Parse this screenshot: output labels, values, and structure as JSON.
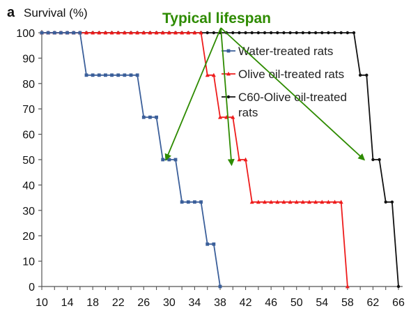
{
  "chart_data": {
    "type": "line",
    "panel_letter": "a",
    "ylabel": "Survival (%)",
    "xlabel": "",
    "xlim": [
      10,
      66
    ],
    "ylim": [
      0,
      100
    ],
    "x_ticks": [
      10,
      14,
      18,
      22,
      26,
      30,
      34,
      38,
      42,
      46,
      50,
      54,
      58,
      62,
      66
    ],
    "y_ticks": [
      0,
      10,
      20,
      30,
      40,
      50,
      60,
      70,
      80,
      90,
      100
    ],
    "grid": false,
    "legend_position": "upper-right",
    "annotation": {
      "text": "Typical lifespan",
      "color": "#2e8b00",
      "arrow_targets": [
        [
          29.5,
          50
        ],
        [
          39.8,
          48
        ],
        [
          60.6,
          50
        ]
      ]
    },
    "series": [
      {
        "name": "Water-treated rats",
        "color": "#3b5f9a",
        "marker": "square",
        "points": [
          [
            10,
            100
          ],
          [
            11,
            100
          ],
          [
            12,
            100
          ],
          [
            13,
            100
          ],
          [
            14,
            100
          ],
          [
            15,
            100
          ],
          [
            16,
            100
          ],
          [
            17,
            83.3
          ],
          [
            18,
            83.3
          ],
          [
            19,
            83.3
          ],
          [
            20,
            83.3
          ],
          [
            21,
            83.3
          ],
          [
            22,
            83.3
          ],
          [
            23,
            83.3
          ],
          [
            24,
            83.3
          ],
          [
            25,
            83.3
          ],
          [
            26,
            66.7
          ],
          [
            27,
            66.7
          ],
          [
            28,
            66.7
          ],
          [
            29,
            50
          ],
          [
            30,
            50
          ],
          [
            31,
            50
          ],
          [
            32,
            33.3
          ],
          [
            33,
            33.3
          ],
          [
            34,
            33.3
          ],
          [
            35,
            33.3
          ],
          [
            36,
            16.7
          ],
          [
            37,
            16.7
          ],
          [
            38,
            0
          ]
        ]
      },
      {
        "name": "Olive oil-treated rats",
        "color": "#ee1c1c",
        "marker": "triangle",
        "points": [
          [
            10,
            100
          ],
          [
            11,
            100
          ],
          [
            12,
            100
          ],
          [
            13,
            100
          ],
          [
            14,
            100
          ],
          [
            15,
            100
          ],
          [
            16,
            100
          ],
          [
            17,
            100
          ],
          [
            18,
            100
          ],
          [
            19,
            100
          ],
          [
            20,
            100
          ],
          [
            21,
            100
          ],
          [
            22,
            100
          ],
          [
            23,
            100
          ],
          [
            24,
            100
          ],
          [
            25,
            100
          ],
          [
            26,
            100
          ],
          [
            27,
            100
          ],
          [
            28,
            100
          ],
          [
            29,
            100
          ],
          [
            30,
            100
          ],
          [
            31,
            100
          ],
          [
            32,
            100
          ],
          [
            33,
            100
          ],
          [
            34,
            100
          ],
          [
            35,
            100
          ],
          [
            36,
            83.3
          ],
          [
            37,
            83.3
          ],
          [
            38,
            66.7
          ],
          [
            39,
            66.7
          ],
          [
            40,
            66.7
          ],
          [
            41,
            50
          ],
          [
            42,
            50
          ],
          [
            43,
            33.3
          ],
          [
            44,
            33.3
          ],
          [
            45,
            33.3
          ],
          [
            46,
            33.3
          ],
          [
            47,
            33.3
          ],
          [
            48,
            33.3
          ],
          [
            49,
            33.3
          ],
          [
            50,
            33.3
          ],
          [
            51,
            33.3
          ],
          [
            52,
            33.3
          ],
          [
            53,
            33.3
          ],
          [
            54,
            33.3
          ],
          [
            55,
            33.3
          ],
          [
            56,
            33.3
          ],
          [
            57,
            33.3
          ],
          [
            58,
            0
          ]
        ]
      },
      {
        "name": "C60-Olive oil-treated rats",
        "color": "#111111",
        "marker": "circle",
        "points": [
          [
            10,
            100
          ],
          [
            11,
            100
          ],
          [
            12,
            100
          ],
          [
            13,
            100
          ],
          [
            14,
            100
          ],
          [
            15,
            100
          ],
          [
            16,
            100
          ],
          [
            17,
            100
          ],
          [
            18,
            100
          ],
          [
            19,
            100
          ],
          [
            20,
            100
          ],
          [
            21,
            100
          ],
          [
            22,
            100
          ],
          [
            23,
            100
          ],
          [
            24,
            100
          ],
          [
            25,
            100
          ],
          [
            26,
            100
          ],
          [
            27,
            100
          ],
          [
            28,
            100
          ],
          [
            29,
            100
          ],
          [
            30,
            100
          ],
          [
            31,
            100
          ],
          [
            32,
            100
          ],
          [
            33,
            100
          ],
          [
            34,
            100
          ],
          [
            35,
            100
          ],
          [
            36,
            100
          ],
          [
            37,
            100
          ],
          [
            38,
            100
          ],
          [
            39,
            100
          ],
          [
            40,
            100
          ],
          [
            41,
            100
          ],
          [
            42,
            100
          ],
          [
            43,
            100
          ],
          [
            44,
            100
          ],
          [
            45,
            100
          ],
          [
            46,
            100
          ],
          [
            47,
            100
          ],
          [
            48,
            100
          ],
          [
            49,
            100
          ],
          [
            50,
            100
          ],
          [
            51,
            100
          ],
          [
            52,
            100
          ],
          [
            53,
            100
          ],
          [
            54,
            100
          ],
          [
            55,
            100
          ],
          [
            56,
            100
          ],
          [
            57,
            100
          ],
          [
            58,
            100
          ],
          [
            59,
            100
          ],
          [
            60,
            83.3
          ],
          [
            61,
            83.3
          ],
          [
            62,
            50
          ],
          [
            63,
            50
          ],
          [
            64,
            33.3
          ],
          [
            65,
            33.3
          ],
          [
            66,
            0
          ]
        ]
      }
    ],
    "legend": [
      {
        "lines": [
          "Water-treated rats"
        ]
      },
      {
        "lines": [
          "Olive oil-treated rats"
        ]
      },
      {
        "lines": [
          "C60-Olive oil-treated",
          "rats"
        ]
      }
    ]
  }
}
